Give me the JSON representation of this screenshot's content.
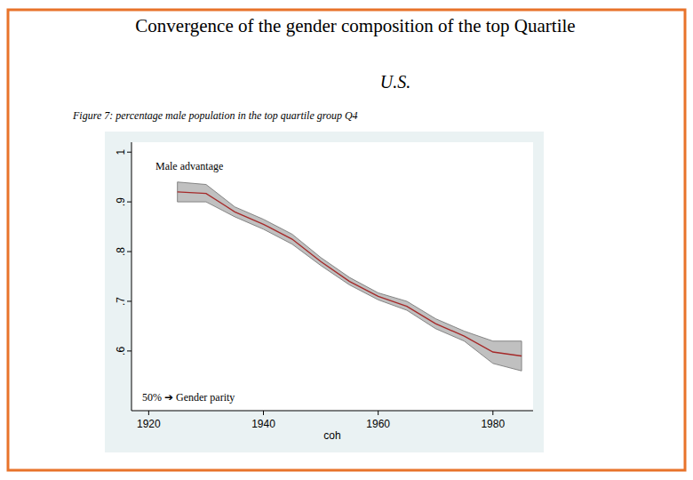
{
  "chart_data": {
    "type": "line",
    "title": "Convergence of the gender composition of the top Quartile",
    "subtitle": "U.S.",
    "caption": "Figure 7: percentage male population in the top quartile group Q4",
    "x_label": "coh",
    "annotations": [
      "Male advantage",
      "50% ➔ Gender parity"
    ],
    "x": [
      1925,
      1930,
      1935,
      1940,
      1945,
      1950,
      1955,
      1960,
      1965,
      1970,
      1975,
      1980,
      1985
    ],
    "series": [
      {
        "name": "percentage male",
        "color": "#a52a2a",
        "values": [
          0.92,
          0.917,
          0.88,
          0.855,
          0.825,
          0.78,
          0.74,
          0.71,
          0.69,
          0.655,
          0.63,
          0.598,
          0.59
        ],
        "lower": [
          0.9,
          0.9,
          0.87,
          0.845,
          0.815,
          0.772,
          0.733,
          0.703,
          0.682,
          0.645,
          0.62,
          0.575,
          0.56
        ],
        "upper": [
          0.94,
          0.935,
          0.89,
          0.865,
          0.835,
          0.788,
          0.748,
          0.717,
          0.7,
          0.665,
          0.64,
          0.62,
          0.62
        ]
      }
    ],
    "xlim": [
      1917,
      1987
    ],
    "ylim": [
      0.48,
      1.02
    ],
    "xticks": [
      1920,
      1940,
      1960,
      1980
    ],
    "yticks": [
      {
        "value": 0.6,
        "label": ".6"
      },
      {
        "value": 0.7,
        "label": ".7"
      },
      {
        "value": 0.8,
        "label": ".8"
      },
      {
        "value": 0.9,
        "label": ".9"
      },
      1
    ],
    "grid": false
  }
}
